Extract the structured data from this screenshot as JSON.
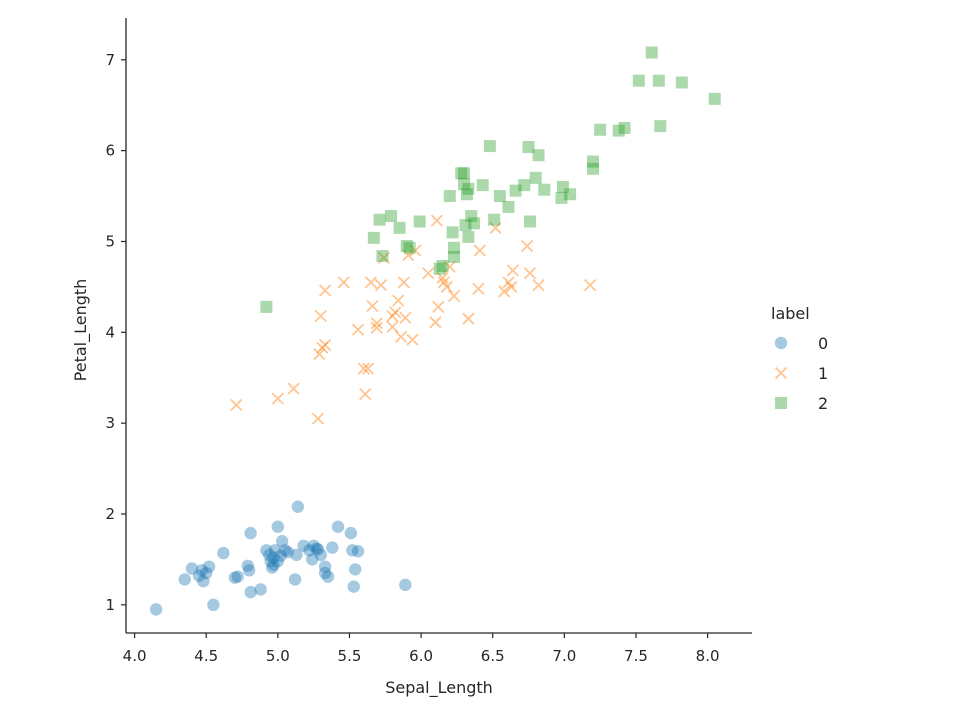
{
  "chart_data": {
    "type": "scatter",
    "title": "",
    "xlabel": "Sepal_Length",
    "ylabel": "Petal_Length",
    "xlim": [
      3.94,
      8.31
    ],
    "ylim": [
      0.69,
      7.46
    ],
    "xticks": [
      4.0,
      4.5,
      5.0,
      5.5,
      6.0,
      6.5,
      7.0,
      7.5,
      8.0
    ],
    "yticks": [
      1,
      2,
      3,
      4,
      5,
      6,
      7
    ],
    "grid": false,
    "legend": {
      "title": "label",
      "placement": "right"
    },
    "series": [
      {
        "name": "0",
        "marker": "circle",
        "color": "#1f77b4",
        "points": [
          [
            4.15,
            0.95
          ],
          [
            4.35,
            1.28
          ],
          [
            4.4,
            1.4
          ],
          [
            4.45,
            1.32
          ],
          [
            4.47,
            1.38
          ],
          [
            4.48,
            1.26
          ],
          [
            4.5,
            1.35
          ],
          [
            4.52,
            1.42
          ],
          [
            4.55,
            1.0
          ],
          [
            4.62,
            1.57
          ],
          [
            4.7,
            1.3
          ],
          [
            4.72,
            1.31
          ],
          [
            4.79,
            1.43
          ],
          [
            4.8,
            1.38
          ],
          [
            4.81,
            1.79
          ],
          [
            4.81,
            1.14
          ],
          [
            4.88,
            1.17
          ],
          [
            4.92,
            1.6
          ],
          [
            4.94,
            1.55
          ],
          [
            4.95,
            1.48
          ],
          [
            4.96,
            1.41
          ],
          [
            4.97,
            1.44
          ],
          [
            4.97,
            1.52
          ],
          [
            4.98,
            1.6
          ],
          [
            5.0,
            1.86
          ],
          [
            5.0,
            1.48
          ],
          [
            5.02,
            1.54
          ],
          [
            5.03,
            1.7
          ],
          [
            5.05,
            1.6
          ],
          [
            5.07,
            1.58
          ],
          [
            5.12,
            1.28
          ],
          [
            5.13,
            1.55
          ],
          [
            5.14,
            2.08
          ],
          [
            5.18,
            1.65
          ],
          [
            5.22,
            1.6
          ],
          [
            5.24,
            1.5
          ],
          [
            5.25,
            1.65
          ],
          [
            5.27,
            1.62
          ],
          [
            5.28,
            1.61
          ],
          [
            5.3,
            1.55
          ],
          [
            5.33,
            1.42
          ],
          [
            5.33,
            1.35
          ],
          [
            5.35,
            1.31
          ],
          [
            5.38,
            1.63
          ],
          [
            5.42,
            1.86
          ],
          [
            5.51,
            1.79
          ],
          [
            5.52,
            1.6
          ],
          [
            5.53,
            1.2
          ],
          [
            5.54,
            1.39
          ],
          [
            5.56,
            1.59
          ],
          [
            5.89,
            1.22
          ]
        ]
      },
      {
        "name": "1",
        "marker": "x",
        "color": "#ff7f0e",
        "points": [
          [
            4.71,
            3.2
          ],
          [
            5.0,
            3.27
          ],
          [
            5.11,
            3.38
          ],
          [
            5.28,
            3.05
          ],
          [
            5.29,
            3.76
          ],
          [
            5.3,
            4.18
          ],
          [
            5.31,
            3.83
          ],
          [
            5.33,
            3.86
          ],
          [
            5.33,
            4.46
          ],
          [
            5.46,
            4.55
          ],
          [
            5.56,
            4.03
          ],
          [
            5.6,
            3.6
          ],
          [
            5.61,
            3.32
          ],
          [
            5.63,
            3.6
          ],
          [
            5.65,
            4.55
          ],
          [
            5.66,
            4.29
          ],
          [
            5.69,
            4.1
          ],
          [
            5.69,
            4.05
          ],
          [
            5.72,
            4.52
          ],
          [
            5.74,
            4.82
          ],
          [
            5.8,
            4.18
          ],
          [
            5.8,
            4.06
          ],
          [
            5.82,
            4.22
          ],
          [
            5.84,
            4.35
          ],
          [
            5.86,
            3.95
          ],
          [
            5.88,
            4.55
          ],
          [
            5.89,
            4.16
          ],
          [
            5.91,
            4.85
          ],
          [
            5.94,
            3.92
          ],
          [
            5.96,
            4.9
          ],
          [
            6.05,
            4.65
          ],
          [
            6.1,
            4.11
          ],
          [
            6.11,
            5.23
          ],
          [
            6.12,
            4.28
          ],
          [
            6.15,
            4.6
          ],
          [
            6.16,
            4.55
          ],
          [
            6.18,
            4.5
          ],
          [
            6.2,
            4.72
          ],
          [
            6.23,
            4.4
          ],
          [
            6.33,
            4.15
          ],
          [
            6.4,
            4.48
          ],
          [
            6.41,
            4.9
          ],
          [
            6.52,
            5.15
          ],
          [
            6.58,
            4.45
          ],
          [
            6.61,
            4.55
          ],
          [
            6.63,
            4.5
          ],
          [
            6.64,
            4.68
          ],
          [
            6.74,
            4.95
          ],
          [
            6.76,
            4.65
          ],
          [
            6.82,
            4.52
          ],
          [
            7.18,
            4.52
          ]
        ]
      },
      {
        "name": "2",
        "marker": "square",
        "color": "#2ca02c",
        "points": [
          [
            4.92,
            4.28
          ],
          [
            5.67,
            5.04
          ],
          [
            5.71,
            5.24
          ],
          [
            5.73,
            4.84
          ],
          [
            5.79,
            5.28
          ],
          [
            5.85,
            5.15
          ],
          [
            5.9,
            4.95
          ],
          [
            5.92,
            4.93
          ],
          [
            5.99,
            5.22
          ],
          [
            6.13,
            4.7
          ],
          [
            6.15,
            4.73
          ],
          [
            6.2,
            5.5
          ],
          [
            6.22,
            5.1
          ],
          [
            6.23,
            4.93
          ],
          [
            6.23,
            4.83
          ],
          [
            6.28,
            5.75
          ],
          [
            6.3,
            5.75
          ],
          [
            6.3,
            5.63
          ],
          [
            6.31,
            5.18
          ],
          [
            6.32,
            5.52
          ],
          [
            6.33,
            5.58
          ],
          [
            6.33,
            5.05
          ],
          [
            6.35,
            5.28
          ],
          [
            6.37,
            5.2
          ],
          [
            6.43,
            5.62
          ],
          [
            6.48,
            6.05
          ],
          [
            6.51,
            5.24
          ],
          [
            6.55,
            5.5
          ],
          [
            6.61,
            5.38
          ],
          [
            6.66,
            5.56
          ],
          [
            6.72,
            5.62
          ],
          [
            6.75,
            6.04
          ],
          [
            6.76,
            5.22
          ],
          [
            6.8,
            5.7
          ],
          [
            6.82,
            5.95
          ],
          [
            6.86,
            5.57
          ],
          [
            6.98,
            5.48
          ],
          [
            6.99,
            5.6
          ],
          [
            7.04,
            5.52
          ],
          [
            7.2,
            5.8
          ],
          [
            7.2,
            5.88
          ],
          [
            7.25,
            6.23
          ],
          [
            7.38,
            6.22
          ],
          [
            7.42,
            6.25
          ],
          [
            7.52,
            6.77
          ],
          [
            7.61,
            7.08
          ],
          [
            7.66,
            6.77
          ],
          [
            7.67,
            6.27
          ],
          [
            7.82,
            6.75
          ],
          [
            8.05,
            6.57
          ]
        ]
      }
    ]
  }
}
